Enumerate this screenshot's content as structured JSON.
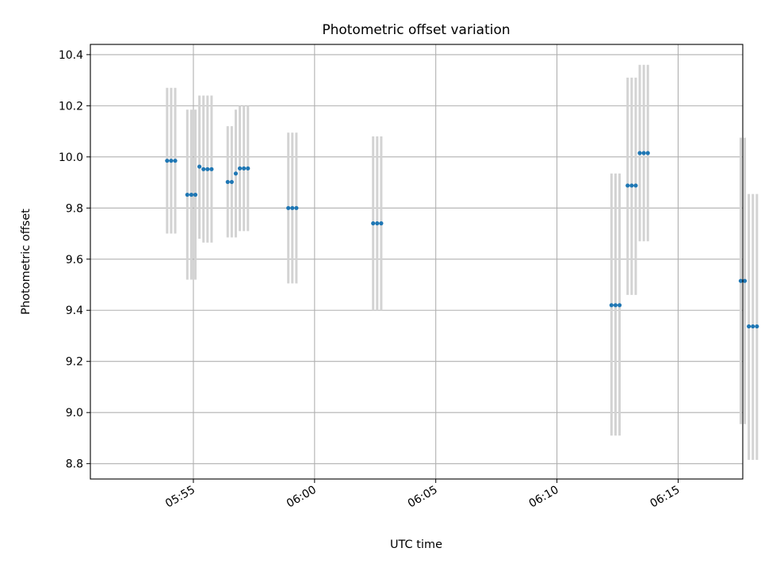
{
  "chart_data": {
    "type": "scatter",
    "title": "Photometric offset variation",
    "xlabel": "UTC time",
    "ylabel": "Photometric offset",
    "x_axis": {
      "type": "time",
      "range": [
        "05:50:45",
        "06:17:40"
      ],
      "ticks": [
        "05:55",
        "06:00",
        "06:05",
        "06:10",
        "06:15"
      ]
    },
    "y_axis": {
      "range": [
        8.74,
        10.44
      ],
      "ticks": [
        "8.8",
        "9.0",
        "9.2",
        "9.4",
        "9.6",
        "9.8",
        "10.0",
        "10.2",
        "10.4"
      ]
    },
    "grid": true,
    "point_color": "#1f77b4",
    "errorbar_color": "#d3d3d3",
    "series": [
      {
        "points": [
          {
            "t": "05:53:55",
            "y": 9.985,
            "lo": 9.7,
            "hi": 10.27
          },
          {
            "t": "05:54:05",
            "y": 9.985,
            "lo": 9.7,
            "hi": 10.27
          },
          {
            "t": "05:54:15",
            "y": 9.985,
            "lo": 9.7,
            "hi": 10.27
          },
          {
            "t": "05:54:45",
            "y": 9.852,
            "lo": 9.52,
            "hi": 10.185
          },
          {
            "t": "05:54:55",
            "y": 9.852,
            "lo": 9.52,
            "hi": 10.185
          },
          {
            "t": "05:55:05",
            "y": 9.852,
            "lo": 9.52,
            "hi": 10.185
          },
          {
            "t": "05:55:15",
            "y": 9.962,
            "lo": 9.68,
            "hi": 10.24
          },
          {
            "t": "05:55:25",
            "y": 9.952,
            "lo": 9.665,
            "hi": 10.24
          },
          {
            "t": "05:55:35",
            "y": 9.952,
            "lo": 9.665,
            "hi": 10.24
          },
          {
            "t": "05:55:45",
            "y": 9.952,
            "lo": 9.665,
            "hi": 10.24
          },
          {
            "t": "05:56:25",
            "y": 9.902,
            "lo": 9.685,
            "hi": 10.12
          },
          {
            "t": "05:56:35",
            "y": 9.902,
            "lo": 9.685,
            "hi": 10.12
          },
          {
            "t": "05:56:45",
            "y": 9.935,
            "lo": 9.685,
            "hi": 10.185
          },
          {
            "t": "05:56:55",
            "y": 9.955,
            "lo": 9.71,
            "hi": 10.2
          },
          {
            "t": "05:57:05",
            "y": 9.955,
            "lo": 9.71,
            "hi": 10.2
          },
          {
            "t": "05:57:15",
            "y": 9.955,
            "lo": 9.71,
            "hi": 10.2
          },
          {
            "t": "05:58:55",
            "y": 9.8,
            "lo": 9.505,
            "hi": 10.095
          },
          {
            "t": "05:59:05",
            "y": 9.8,
            "lo": 9.505,
            "hi": 10.095
          },
          {
            "t": "05:59:15",
            "y": 9.8,
            "lo": 9.505,
            "hi": 10.095
          },
          {
            "t": "06:02:25",
            "y": 9.74,
            "lo": 9.4,
            "hi": 10.08
          },
          {
            "t": "06:02:35",
            "y": 9.74,
            "lo": 9.4,
            "hi": 10.08
          },
          {
            "t": "06:02:45",
            "y": 9.74,
            "lo": 9.4,
            "hi": 10.08
          },
          {
            "t": "06:12:15",
            "y": 9.42,
            "lo": 8.91,
            "hi": 9.935
          },
          {
            "t": "06:12:25",
            "y": 9.42,
            "lo": 8.91,
            "hi": 9.935
          },
          {
            "t": "06:12:35",
            "y": 9.42,
            "lo": 8.91,
            "hi": 9.935
          },
          {
            "t": "06:12:55",
            "y": 9.888,
            "lo": 9.46,
            "hi": 10.31
          },
          {
            "t": "06:13:05",
            "y": 9.888,
            "lo": 9.46,
            "hi": 10.31
          },
          {
            "t": "06:13:15",
            "y": 9.888,
            "lo": 9.46,
            "hi": 10.31
          },
          {
            "t": "06:13:25",
            "y": 10.015,
            "lo": 9.67,
            "hi": 10.36
          },
          {
            "t": "06:13:35",
            "y": 10.015,
            "lo": 9.67,
            "hi": 10.36
          },
          {
            "t": "06:13:45",
            "y": 10.015,
            "lo": 9.67,
            "hi": 10.36
          },
          {
            "t": "06:17:35",
            "y": 9.515,
            "lo": 8.955,
            "hi": 10.075
          },
          {
            "t": "06:17:45",
            "y": 9.515,
            "lo": 8.955,
            "hi": 10.075
          },
          {
            "t": "06:17:55",
            "y": 9.337,
            "lo": 8.815,
            "hi": 9.855
          },
          {
            "t": "06:18:05",
            "y": 9.337,
            "lo": 8.815,
            "hi": 9.855
          },
          {
            "t": "06:18:15",
            "y": 9.337,
            "lo": 8.815,
            "hi": 9.855
          }
        ]
      }
    ]
  }
}
